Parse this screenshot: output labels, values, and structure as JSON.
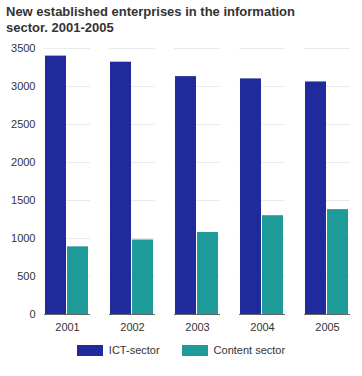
{
  "chart_data": {
    "type": "bar",
    "title": "New established enterprises in the information sector. 2001-2005",
    "categories": [
      "2001",
      "2002",
      "2003",
      "2004",
      "2005"
    ],
    "series": [
      {
        "name": "ICT-sector",
        "color": "#1f2a9c",
        "values": [
          3400,
          3320,
          3130,
          3100,
          3060
        ]
      },
      {
        "name": "Content sector",
        "color": "#1e9b98",
        "values": [
          890,
          980,
          1080,
          1300,
          1380
        ]
      }
    ],
    "ylim": [
      0,
      3500
    ],
    "yticks": [
      0,
      500,
      1000,
      1500,
      2000,
      2500,
      3000,
      3500
    ],
    "grid": true,
    "legend": "bottom"
  }
}
